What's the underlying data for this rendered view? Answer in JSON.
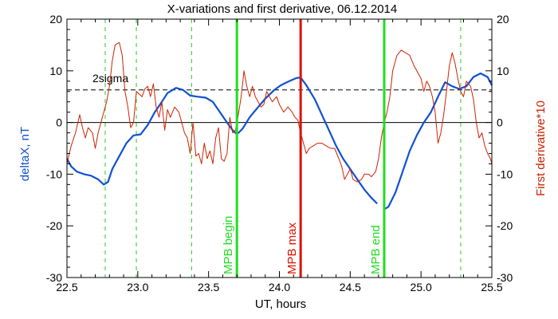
{
  "chart_data": {
    "type": "line",
    "title": "X-variations and first derivative, 06.12.2014",
    "xlabel": "UT, hours",
    "ylabel_left": "deltaX, nT",
    "ylabel_right": "First derivative*10",
    "xlim": [
      22.5,
      25.5
    ],
    "ylim": [
      -30,
      20
    ],
    "x_ticks": [
      "22.5",
      "23.0",
      "23.5",
      "24.0",
      "24.5",
      "25.0",
      "25.5"
    ],
    "y_ticks": [
      "-30",
      "-20",
      "-10",
      "0",
      "10",
      "20"
    ],
    "zero_line": 0,
    "sigma_level": 6.3,
    "sigma_label": "2sigma",
    "colors": {
      "deltaX": "#1050d0",
      "derivative": "#cc2200",
      "mpb_begin_end": "#22dd22",
      "mpb_max": "#dd1100",
      "dashed_markers": "#22cc22"
    },
    "dashed_markers_x": [
      22.77,
      22.99,
      23.38,
      25.28
    ],
    "vlines": [
      {
        "x": 23.7,
        "label": "MPB begin",
        "kind": "begin_end"
      },
      {
        "x": 24.15,
        "label": "MPB max",
        "kind": "max"
      },
      {
        "x": 24.74,
        "label": "MPB end",
        "kind": "begin_end"
      }
    ],
    "series": [
      {
        "name": "deltaX",
        "segments": [
          [
            [
              22.5,
              -7.0
            ],
            [
              22.53,
              -8.5
            ],
            [
              22.57,
              -9.5
            ],
            [
              22.62,
              -10.0
            ],
            [
              22.67,
              -10.3
            ],
            [
              22.72,
              -11.0
            ],
            [
              22.76,
              -12.0
            ],
            [
              22.79,
              -11.5
            ],
            [
              22.82,
              -9.0
            ],
            [
              22.87,
              -6.5
            ],
            [
              22.92,
              -4.0
            ],
            [
              22.97,
              -2.5
            ],
            [
              23.02,
              -2.3
            ],
            [
              23.07,
              -0.5
            ],
            [
              23.12,
              2.0
            ],
            [
              23.17,
              4.0
            ],
            [
              23.21,
              5.7
            ],
            [
              23.27,
              6.7
            ],
            [
              23.32,
              6.3
            ],
            [
              23.37,
              5.2
            ],
            [
              23.42,
              5.0
            ],
            [
              23.48,
              4.8
            ],
            [
              23.53,
              4.0
            ],
            [
              23.58,
              2.0
            ],
            [
              23.63,
              0.0
            ],
            [
              23.67,
              -1.5
            ],
            [
              23.7,
              -2.3
            ],
            [
              23.74,
              -1.2
            ],
            [
              23.79,
              1.0
            ],
            [
              23.85,
              3.0
            ],
            [
              23.9,
              4.6
            ],
            [
              23.96,
              6.2
            ],
            [
              24.01,
              7.2
            ],
            [
              24.07,
              8.0
            ],
            [
              24.12,
              8.6
            ],
            [
              24.15,
              8.7
            ],
            [
              24.19,
              7.2
            ],
            [
              24.25,
              4.5
            ],
            [
              24.3,
              1.5
            ],
            [
              24.35,
              -1.5
            ],
            [
              24.4,
              -4.5
            ],
            [
              24.45,
              -7.0
            ],
            [
              24.5,
              -9.0
            ],
            [
              24.55,
              -11.0
            ],
            [
              24.6,
              -13.0
            ],
            [
              24.65,
              -14.6
            ],
            [
              24.69,
              -15.7
            ]
          ],
          [
            [
              24.74,
              -16.8
            ],
            [
              24.77,
              -16.3
            ],
            [
              24.82,
              -13.5
            ],
            [
              24.87,
              -9.5
            ],
            [
              24.92,
              -5.5
            ],
            [
              24.97,
              -2.5
            ],
            [
              25.02,
              0.0
            ],
            [
              25.07,
              2.0
            ],
            [
              25.12,
              5.0
            ],
            [
              25.17,
              7.8
            ],
            [
              25.22,
              7.0
            ],
            [
              25.27,
              6.5
            ],
            [
              25.32,
              7.0
            ],
            [
              25.37,
              8.8
            ],
            [
              25.42,
              9.5
            ],
            [
              25.47,
              8.8
            ],
            [
              25.5,
              7.2
            ]
          ]
        ]
      },
      {
        "name": "First derivative*10",
        "segments": [
          [
            [
              22.5,
              -8.0
            ],
            [
              22.53,
              -4.5
            ],
            [
              22.56,
              -2.0
            ],
            [
              22.59,
              1.5
            ],
            [
              22.61,
              -1.0
            ],
            [
              22.63,
              -3.0
            ],
            [
              22.65,
              -1.0
            ],
            [
              22.68,
              -2.0
            ],
            [
              22.7,
              -5.0
            ],
            [
              22.72,
              -2.0
            ],
            [
              22.74,
              0.0
            ],
            [
              22.76,
              2.0
            ],
            [
              22.78,
              4.0
            ],
            [
              22.8,
              7.0
            ],
            [
              22.82,
              12.0
            ],
            [
              22.84,
              15.0
            ],
            [
              22.87,
              15.5
            ],
            [
              22.89,
              13.0
            ],
            [
              22.91,
              6.0
            ],
            [
              22.93,
              3.0
            ],
            [
              22.95,
              -1.0
            ],
            [
              22.97,
              0.0
            ],
            [
              22.99,
              6.0
            ],
            [
              23.01,
              5.5
            ],
            [
              23.03,
              5.0
            ],
            [
              23.05,
              6.5
            ],
            [
              23.07,
              7.0
            ],
            [
              23.09,
              5.0
            ],
            [
              23.11,
              7.5
            ],
            [
              23.13,
              3.0
            ],
            [
              23.15,
              1.0
            ],
            [
              23.17,
              4.0
            ],
            [
              23.19,
              -1.5
            ],
            [
              23.21,
              2.5
            ],
            [
              23.23,
              1.0
            ],
            [
              23.26,
              3.0
            ],
            [
              23.29,
              2.0
            ],
            [
              23.31,
              0.0
            ],
            [
              23.33,
              -2.0
            ],
            [
              23.35,
              -3.0
            ],
            [
              23.37,
              -6.0
            ],
            [
              23.39,
              0.0
            ],
            [
              23.41,
              -6.5
            ],
            [
              23.43,
              -6.0
            ],
            [
              23.45,
              -8.0
            ],
            [
              23.47,
              -4.0
            ],
            [
              23.49,
              -7.0
            ],
            [
              23.51,
              -5.5
            ],
            [
              23.53,
              -8.0
            ],
            [
              23.55,
              -3.0
            ],
            [
              23.57,
              -1.0
            ],
            [
              23.59,
              -7.0
            ],
            [
              23.61,
              -7.5
            ],
            [
              23.63,
              -6.0
            ],
            [
              23.65,
              1.0
            ],
            [
              23.67,
              -2.0
            ],
            [
              23.69,
              -1.5
            ],
            [
              23.71,
              1.5
            ],
            [
              23.73,
              5.0
            ],
            [
              23.75,
              10.0
            ],
            [
              23.77,
              7.0
            ],
            [
              23.79,
              5.0
            ],
            [
              23.81,
              7.0
            ],
            [
              23.83,
              5.0
            ],
            [
              23.85,
              4.0
            ],
            [
              23.87,
              3.0
            ],
            [
              23.89,
              3.5
            ],
            [
              23.91,
              6.0
            ],
            [
              23.93,
              5.0
            ],
            [
              23.95,
              4.0
            ],
            [
              23.98,
              5.0
            ],
            [
              24.0,
              3.5
            ],
            [
              24.03,
              2.0
            ],
            [
              24.06,
              3.0
            ],
            [
              24.09,
              2.0
            ],
            [
              24.11,
              1.0
            ],
            [
              24.13,
              0.5
            ],
            [
              24.15,
              -2.0
            ],
            [
              24.17,
              -4.0
            ],
            [
              24.19,
              -6.0
            ],
            [
              24.21,
              -5.0
            ],
            [
              24.24,
              -4.5
            ],
            [
              24.27,
              -4.0
            ],
            [
              24.3,
              -4.0
            ],
            [
              24.33,
              -4.5
            ],
            [
              24.36,
              -5.0
            ],
            [
              24.39,
              -5.0
            ],
            [
              24.42,
              -7.0
            ],
            [
              24.44,
              -8.5
            ],
            [
              24.46,
              -11.0
            ],
            [
              24.48,
              -10.0
            ],
            [
              24.5,
              -9.0
            ],
            [
              24.52,
              -11.0
            ],
            [
              24.55,
              -11.5
            ],
            [
              24.58,
              -11.0
            ],
            [
              24.6,
              -10.0
            ],
            [
              24.63,
              -10.0
            ],
            [
              24.65,
              -10.5
            ],
            [
              24.68,
              -9.5
            ],
            [
              24.7,
              -7.0
            ],
            [
              24.72,
              -3.0
            ],
            [
              24.74,
              0.0
            ],
            [
              24.76,
              2.0
            ],
            [
              24.78,
              5.0
            ],
            [
              24.8,
              10.0
            ],
            [
              24.83,
              13.0
            ],
            [
              24.86,
              14.0
            ],
            [
              24.89,
              13.5
            ],
            [
              24.92,
              13.0
            ],
            [
              24.95,
              11.0
            ],
            [
              24.98,
              9.5
            ],
            [
              25.0,
              8.5
            ],
            [
              25.02,
              6.0
            ],
            [
              25.04,
              8.0
            ],
            [
              25.06,
              7.0
            ],
            [
              25.08,
              5.0
            ],
            [
              25.1,
              2.0
            ],
            [
              25.12,
              -4.0
            ],
            [
              25.14,
              -2.0
            ],
            [
              25.16,
              1.5
            ],
            [
              25.18,
              6.0
            ],
            [
              25.2,
              11.0
            ],
            [
              25.22,
              13.5
            ],
            [
              25.24,
              11.5
            ],
            [
              25.26,
              8.5
            ],
            [
              25.28,
              6.0
            ],
            [
              25.3,
              5.0
            ],
            [
              25.32,
              8.0
            ],
            [
              25.35,
              7.0
            ],
            [
              25.37,
              4.5
            ],
            [
              25.39,
              0.0
            ],
            [
              25.41,
              -3.0
            ],
            [
              25.43,
              -2.0
            ],
            [
              25.45,
              -4.5
            ],
            [
              25.47,
              -6.0
            ],
            [
              25.49,
              -7.0
            ],
            [
              25.5,
              -8.0
            ]
          ]
        ]
      }
    ]
  }
}
